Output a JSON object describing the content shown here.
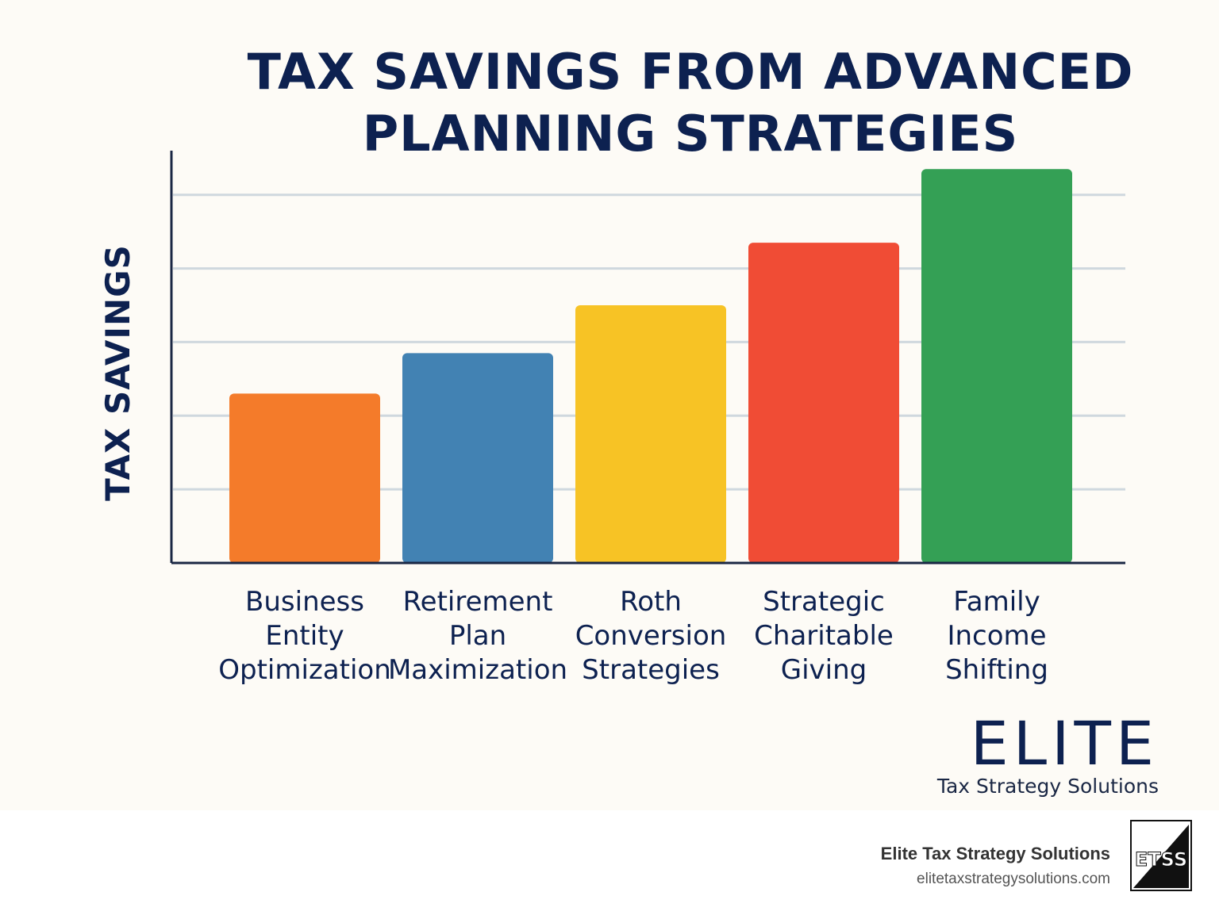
{
  "chart_data": {
    "type": "bar",
    "title": [
      "TAX SAVINGS FROM ADVANCED",
      "PLANNING STRATEGIES"
    ],
    "ylabel": "TAX SAVINGS",
    "xlabel": "",
    "categories": [
      [
        "Business",
        "Entity",
        "Optimization"
      ],
      [
        "Retirement",
        "Plan",
        "Maximization"
      ],
      [
        "Roth",
        "Conversion",
        "Strategies"
      ],
      [
        "Strategic",
        "Charitable",
        "Giving"
      ],
      [
        "Family",
        "Income",
        "Shifting"
      ]
    ],
    "values": [
      2.3,
      2.85,
      3.5,
      4.35,
      5.35
    ],
    "ylim": [
      0,
      5.6
    ],
    "grid": true,
    "bar_colors": [
      "#f47b2a",
      "#4282b3",
      "#f7c325",
      "#f04c35",
      "#34a055"
    ],
    "grid_color": "#cfd8de",
    "axis_color": "#1a2744"
  },
  "brand": {
    "name": "ELITE",
    "tagline": "Tax Strategy Solutions"
  },
  "footer": {
    "company": "Elite Tax Strategy Solutions",
    "url": "elitetaxstrategysolutions.com",
    "logo_icon": "etss-monogram-logo",
    "logo_text": "ETSS"
  }
}
